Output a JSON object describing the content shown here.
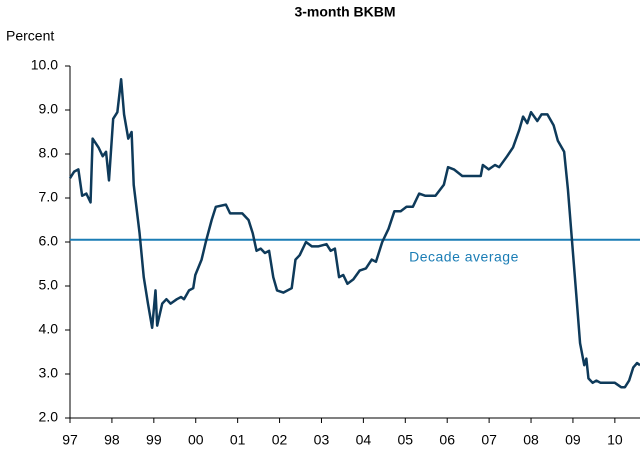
{
  "chart_data": {
    "type": "line",
    "title": "3-month BKBM",
    "y_label": "Percent",
    "color": "#0e3a5a",
    "x": [
      1997.0,
      1997.1,
      1997.2,
      1997.29,
      1997.39,
      1997.49,
      1997.54,
      1997.68,
      1997.78,
      1997.86,
      1997.93,
      1998.03,
      1998.13,
      1998.22,
      1998.29,
      1998.39,
      1998.47,
      1998.52,
      1998.66,
      1998.76,
      1998.86,
      1998.96,
      1999.04,
      1999.08,
      1999.2,
      1999.3,
      1999.4,
      1999.55,
      1999.65,
      1999.72,
      1999.84,
      1999.94,
      1999.99,
      2000.14,
      2000.24,
      2000.38,
      2000.48,
      2000.72,
      2000.82,
      2000.96,
      2001.11,
      2001.26,
      2001.36,
      2001.45,
      2001.55,
      2001.65,
      2001.75,
      2001.85,
      2001.94,
      2002.09,
      2002.29,
      2002.38,
      2002.48,
      2002.63,
      2002.77,
      2002.92,
      2003.12,
      2003.22,
      2003.32,
      2003.42,
      2003.52,
      2003.62,
      2003.76,
      2003.91,
      2004.06,
      2004.2,
      2004.3,
      2004.45,
      2004.6,
      2004.74,
      2004.89,
      2005.03,
      2005.18,
      2005.33,
      2005.48,
      2005.72,
      2005.92,
      2006.02,
      2006.16,
      2006.36,
      2006.55,
      2006.8,
      2006.85,
      2006.99,
      2007.14,
      2007.24,
      2007.43,
      2007.57,
      2007.72,
      2007.81,
      2007.91,
      2008.0,
      2008.15,
      2008.25,
      2008.39,
      2008.54,
      2008.64,
      2008.79,
      2008.88,
      2008.98,
      2009.08,
      2009.17,
      2009.27,
      2009.32,
      2009.37,
      2009.47,
      2009.56,
      2009.66,
      2009.81,
      2010.0,
      2010.15,
      2010.24,
      2010.34,
      2010.44,
      2010.53,
      2010.6
    ],
    "values": [
      7.45,
      7.6,
      7.65,
      7.05,
      7.1,
      6.9,
      8.35,
      8.15,
      7.95,
      8.05,
      7.4,
      8.8,
      8.95,
      9.7,
      8.9,
      8.35,
      8.5,
      7.3,
      6.2,
      5.2,
      4.6,
      4.05,
      4.9,
      4.1,
      4.6,
      4.7,
      4.6,
      4.7,
      4.75,
      4.7,
      4.9,
      4.95,
      5.25,
      5.6,
      6.0,
      6.5,
      6.8,
      6.85,
      6.65,
      6.65,
      6.65,
      6.5,
      6.2,
      5.8,
      5.85,
      5.75,
      5.8,
      5.2,
      4.9,
      4.85,
      4.95,
      5.6,
      5.7,
      6.0,
      5.9,
      5.9,
      5.95,
      5.8,
      5.85,
      5.2,
      5.25,
      5.05,
      5.15,
      5.35,
      5.4,
      5.6,
      5.55,
      6.0,
      6.3,
      6.7,
      6.7,
      6.8,
      6.8,
      7.1,
      7.05,
      7.05,
      7.3,
      7.7,
      7.65,
      7.5,
      7.5,
      7.5,
      7.75,
      7.65,
      7.75,
      7.7,
      7.95,
      8.15,
      8.55,
      8.85,
      8.7,
      8.95,
      8.75,
      8.9,
      8.9,
      8.65,
      8.3,
      8.05,
      7.2,
      6.0,
      4.8,
      3.7,
      3.2,
      3.35,
      2.9,
      2.8,
      2.85,
      2.8,
      2.8,
      2.8,
      2.7,
      2.7,
      2.85,
      3.15,
      3.25,
      3.2
    ],
    "reference": {
      "value": 6.05,
      "label": "Decade average",
      "color": "#1b7db5"
    },
    "xlim": [
      1997,
      2010.6
    ],
    "xticks": [
      {
        "value": 1997,
        "label": "97"
      },
      {
        "value": 1998,
        "label": "98"
      },
      {
        "value": 1999,
        "label": "99"
      },
      {
        "value": 2000,
        "label": "00"
      },
      {
        "value": 2001,
        "label": "01"
      },
      {
        "value": 2002,
        "label": "02"
      },
      {
        "value": 2003,
        "label": "03"
      },
      {
        "value": 2004,
        "label": "04"
      },
      {
        "value": 2005,
        "label": "05"
      },
      {
        "value": 2006,
        "label": "06"
      },
      {
        "value": 2007,
        "label": "07"
      },
      {
        "value": 2008,
        "label": "08"
      },
      {
        "value": 2009,
        "label": "09"
      },
      {
        "value": 2010,
        "label": "10"
      }
    ],
    "ylim": [
      2,
      10
    ],
    "yticks": [
      {
        "value": 2,
        "label": "2.0"
      },
      {
        "value": 3,
        "label": "3.0"
      },
      {
        "value": 4,
        "label": "4.0"
      },
      {
        "value": 5,
        "label": "5.0"
      },
      {
        "value": 6,
        "label": "6.0"
      },
      {
        "value": 7,
        "label": "7.0"
      },
      {
        "value": 8,
        "label": "8.0"
      },
      {
        "value": 9,
        "label": "9.0"
      },
      {
        "value": 10,
        "label": "10.0"
      }
    ]
  }
}
